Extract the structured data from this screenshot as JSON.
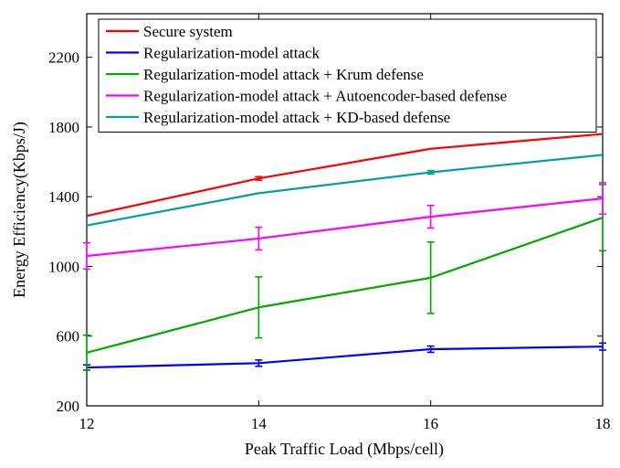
{
  "chart_data": {
    "type": "line",
    "title": "",
    "xlabel": "Peak Traffic Load (Mbps/cell)",
    "ylabel": "Energy Efficiency(Kbps/J)",
    "xlim": [
      12,
      18
    ],
    "ylim": [
      200,
      2450
    ],
    "x_ticks": [
      12,
      14,
      16,
      18
    ],
    "y_ticks": [
      200,
      600,
      1000,
      1400,
      1800,
      2200
    ],
    "grid": false,
    "legend_position": "top",
    "x": [
      12,
      14,
      16,
      18
    ],
    "series": [
      {
        "name": "Secure system",
        "color": "#ff0000",
        "values": [
          1290,
          1505,
          1675,
          1760
        ],
        "errors": [
          0,
          10,
          0,
          0
        ]
      },
      {
        "name": "Regularization-model attack",
        "color": "#0000ff",
        "values": [
          420,
          445,
          525,
          540
        ],
        "errors": [
          15,
          18,
          18,
          20
        ]
      },
      {
        "name": "Regularization-model attack + Krum defense",
        "color": "#00aa00",
        "values": [
          505,
          765,
          935,
          1280
        ],
        "errors": [
          100,
          175,
          205,
          190
        ]
      },
      {
        "name": "Regularization-model attack + Autoencoder-based defense",
        "color": "#ff00ff",
        "values": [
          1060,
          1160,
          1285,
          1390
        ],
        "errors": [
          75,
          65,
          65,
          90
        ]
      },
      {
        "name": "Regularization-model attack + KD-based defense",
        "color": "#00a0a0",
        "values": [
          1235,
          1420,
          1540,
          1640
        ],
        "errors": [
          0,
          0,
          10,
          0
        ]
      }
    ]
  }
}
